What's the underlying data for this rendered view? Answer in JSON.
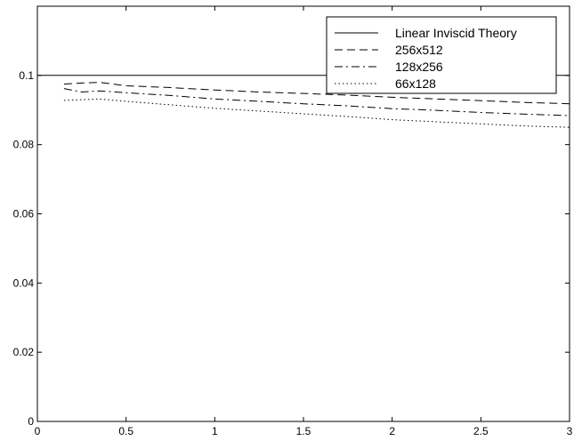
{
  "chart_data": {
    "type": "line",
    "title": "",
    "xlabel": "",
    "ylabel": "",
    "xlim": [
      0,
      3
    ],
    "ylim": [
      0,
      0.12
    ],
    "xticks": [
      0,
      0.5,
      1,
      1.5,
      2,
      2.5,
      3
    ],
    "xtick_labels": [
      "0",
      "0.5",
      "1",
      "1.5",
      "2",
      "2.5",
      "3"
    ],
    "yticks": [
      0,
      0.02,
      0.04,
      0.06,
      0.08,
      0.1
    ],
    "ytick_labels": [
      "0",
      "0.02",
      "0.04",
      "0.06",
      "0.08",
      "0.1"
    ],
    "grid": false,
    "legend_position": "top-right",
    "series": [
      {
        "name": "Linear Inviscid Theory",
        "style": "solid",
        "x": [
          0,
          3
        ],
        "y": [
          0.1,
          0.1
        ]
      },
      {
        "name": "256x512",
        "style": "dashed",
        "x": [
          0.15,
          0.25,
          0.35,
          0.5,
          0.75,
          1.0,
          1.25,
          1.5,
          1.75,
          2.0,
          2.25,
          2.5,
          2.75,
          3.0
        ],
        "y": [
          0.0975,
          0.0978,
          0.098,
          0.097,
          0.0965,
          0.0958,
          0.0952,
          0.0948,
          0.0943,
          0.0937,
          0.0932,
          0.0927,
          0.0922,
          0.0918
        ]
      },
      {
        "name": "128x256",
        "style": "dashdot",
        "x": [
          0.15,
          0.25,
          0.35,
          0.5,
          0.75,
          1.0,
          1.25,
          1.5,
          1.75,
          2.0,
          2.25,
          2.5,
          2.75,
          3.0
        ],
        "y": [
          0.0962,
          0.0952,
          0.0955,
          0.095,
          0.0942,
          0.0932,
          0.0925,
          0.0918,
          0.0912,
          0.0904,
          0.0899,
          0.0893,
          0.0888,
          0.0884
        ]
      },
      {
        "name": "66x128",
        "style": "dotted",
        "x": [
          0.15,
          0.25,
          0.35,
          0.5,
          0.75,
          1.0,
          1.25,
          1.5,
          1.75,
          2.0,
          2.25,
          2.5,
          2.75,
          3.0
        ],
        "y": [
          0.0928,
          0.093,
          0.0932,
          0.0925,
          0.0915,
          0.0905,
          0.0897,
          0.0889,
          0.0881,
          0.0872,
          0.0866,
          0.086,
          0.0854,
          0.085
        ]
      }
    ]
  }
}
